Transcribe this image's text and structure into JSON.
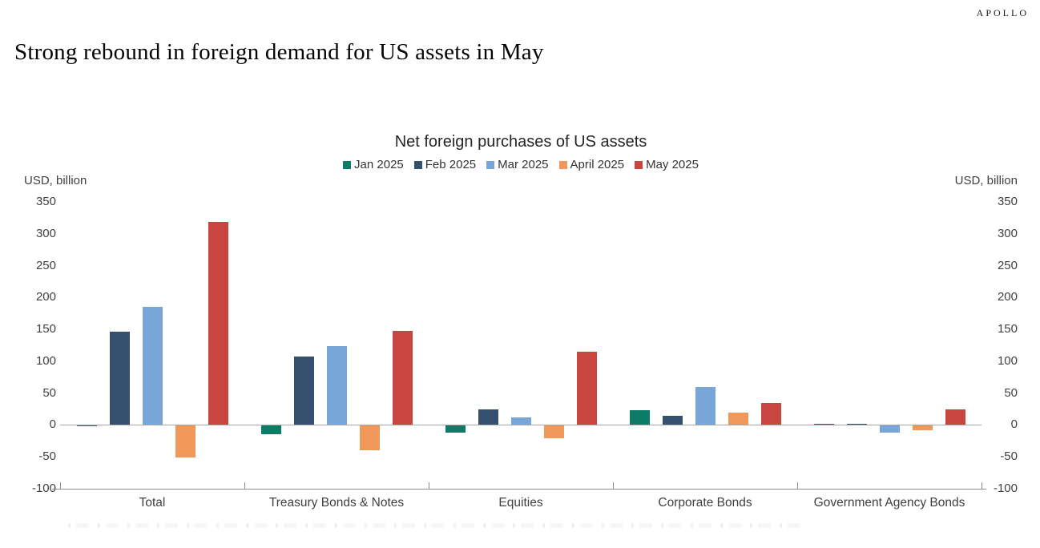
{
  "page": {
    "brand": "APOLLO",
    "title": "Strong rebound in foreign demand for US assets in May"
  },
  "chart_data": {
    "type": "bar",
    "title": "Net foreign purchases of US assets",
    "unit_label_left": "USD, billion",
    "unit_label_right": "USD, billion",
    "categories": [
      "Total",
      "Treasury Bonds & Notes",
      "Equities",
      "Corporate Bonds",
      "Government Agency Bonds"
    ],
    "series": [
      {
        "name": "Jan 2025",
        "color": "#0d7c66",
        "values": [
          -1,
          -13,
          -11,
          23,
          1
        ]
      },
      {
        "name": "Feb 2025",
        "color": "#35506f",
        "values": [
          146,
          107,
          25,
          15,
          1
        ]
      },
      {
        "name": "Mar 2025",
        "color": "#79a6d8",
        "values": [
          185,
          124,
          12,
          60,
          -11
        ]
      },
      {
        "name": "April 2025",
        "color": "#f0975a",
        "values": [
          -50,
          -39,
          -19,
          19,
          -7
        ]
      },
      {
        "name": "May 2025",
        "color": "#c8463f",
        "values": [
          319,
          147,
          115,
          34,
          24
        ]
      }
    ],
    "ylim": [
      -100,
      350
    ],
    "yticks": [
      350,
      300,
      250,
      200,
      150,
      100,
      50,
      0,
      -50,
      -100
    ],
    "legend_position": "top",
    "grid": "off",
    "axis_color": "#8c8c8c",
    "zero_line_color": "#a6a6a6"
  }
}
